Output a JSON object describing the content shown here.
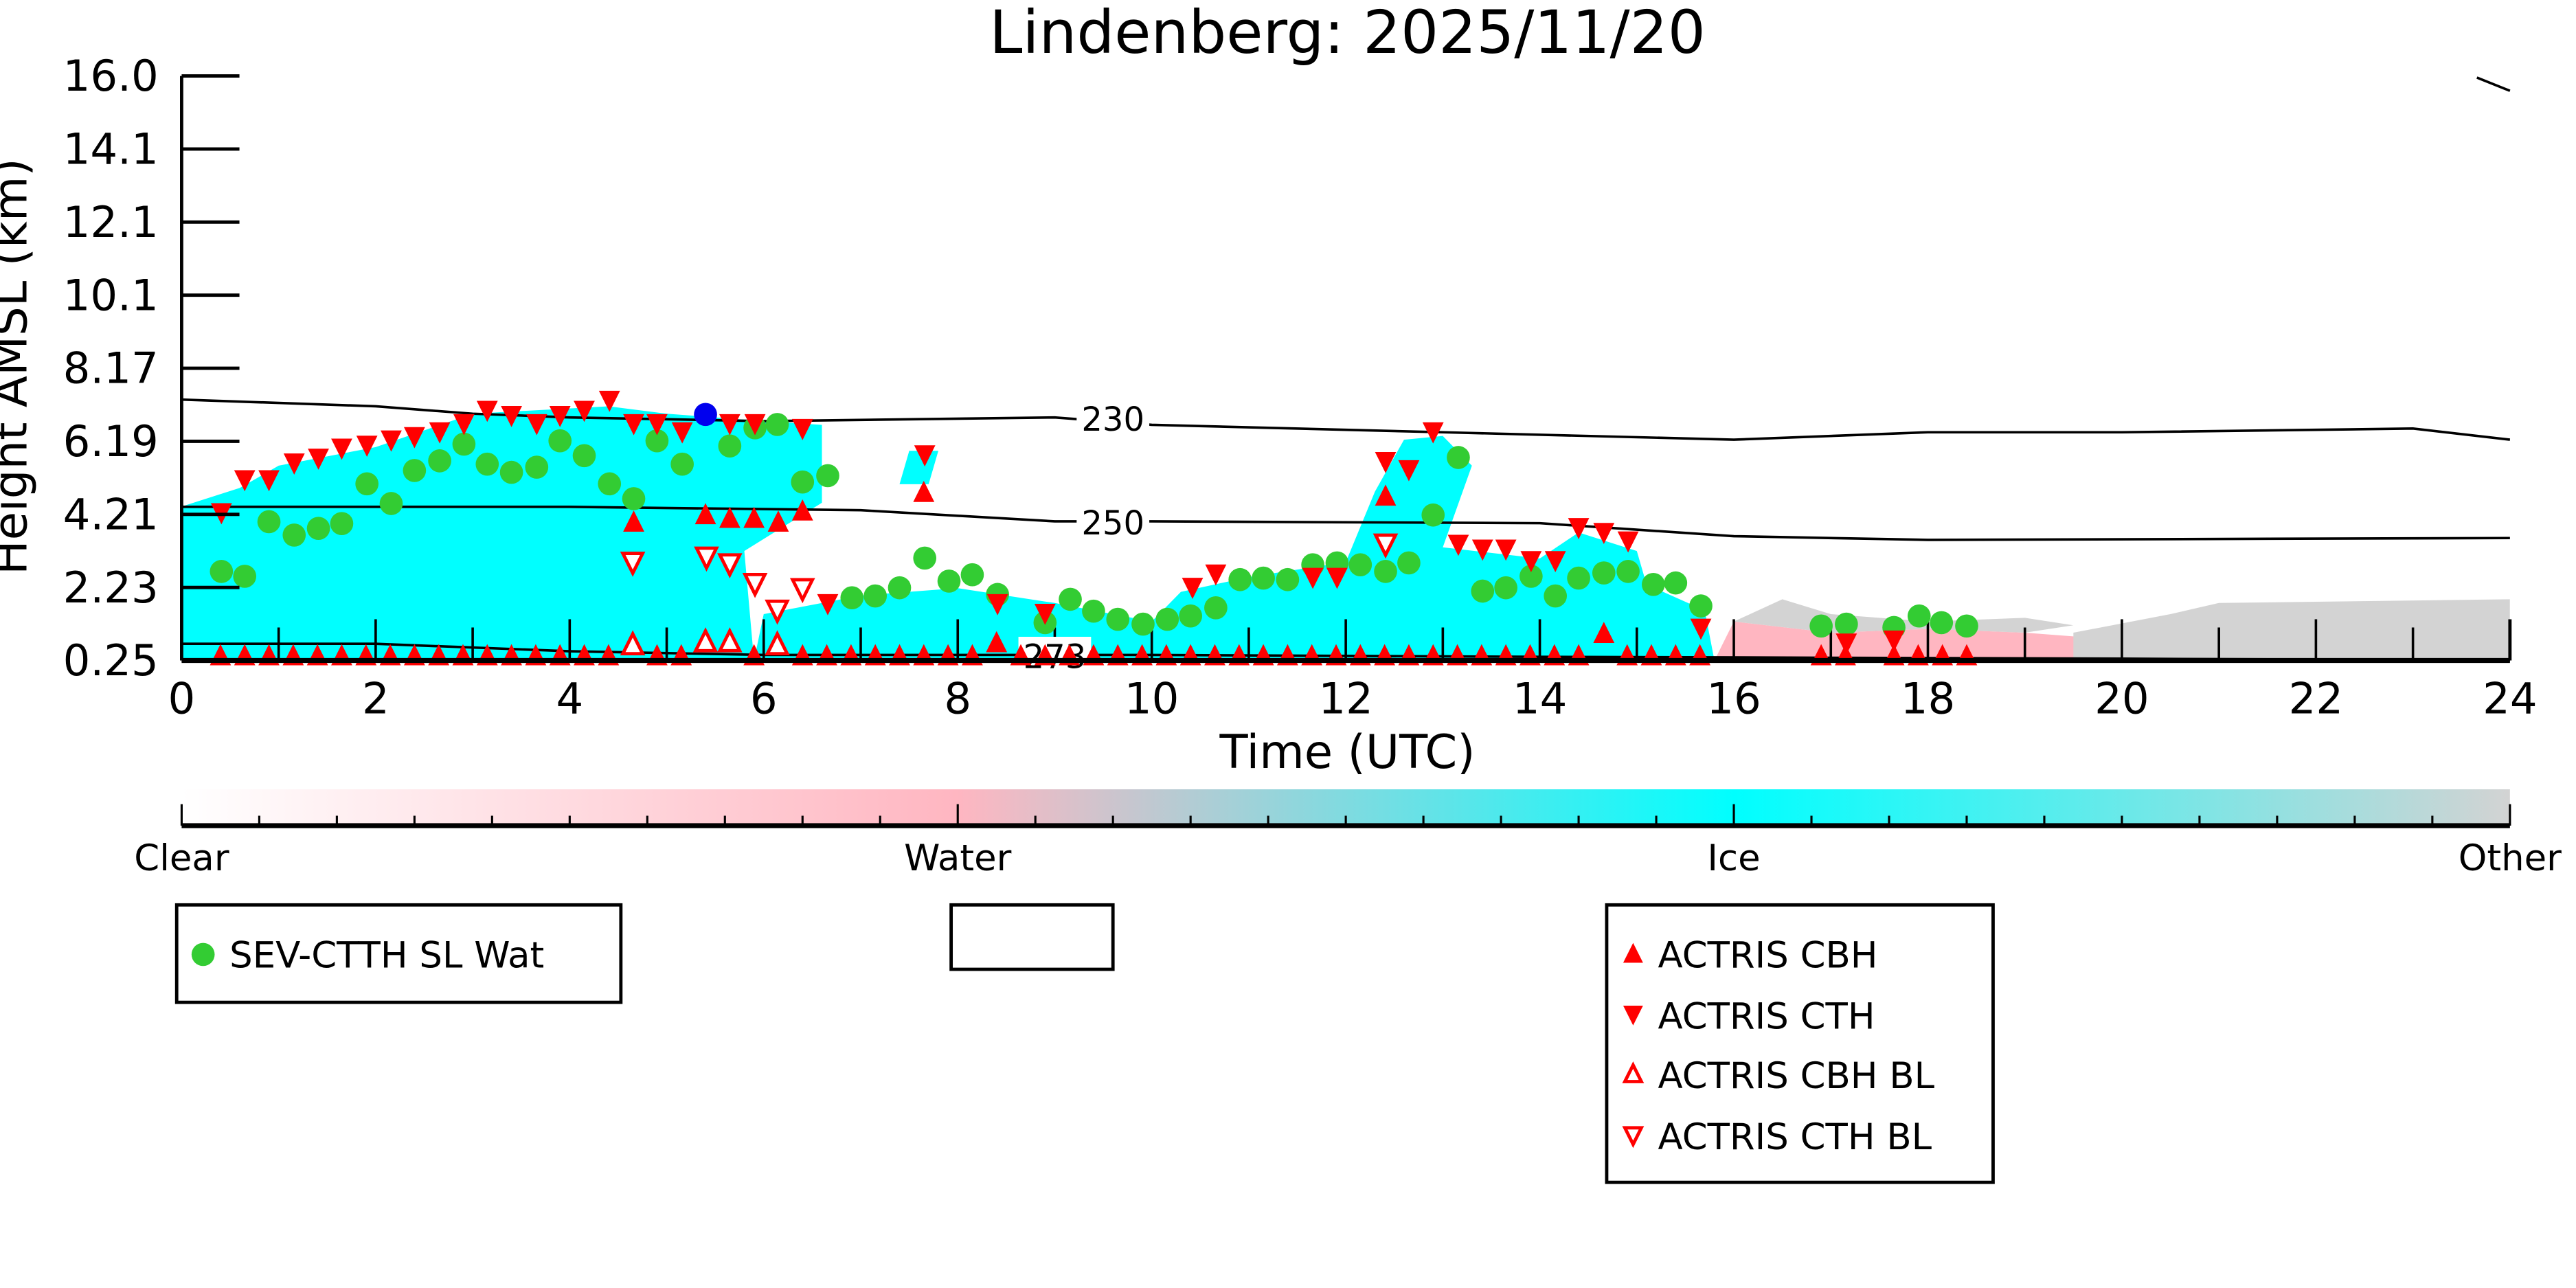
{
  "chart_data": {
    "type": "scatter",
    "title": "Lindenberg: 2025/11/20",
    "xlabel": "Time (UTC)",
    "ylabel": "Height AMSL (km)",
    "xlim": [
      0,
      24
    ],
    "ylim": [
      0.25,
      16.0
    ],
    "x_ticks": [
      "0",
      "2",
      "4",
      "6",
      "8",
      "10",
      "12",
      "14",
      "16",
      "18",
      "20",
      "22",
      "24"
    ],
    "y_ticks": [
      "16.0",
      "14.1",
      "12.1",
      "10.1",
      "8.17",
      "6.19",
      "4.21",
      "2.23",
      "0.25"
    ],
    "colorbar": {
      "labels": [
        "Clear",
        "Water",
        "Ice",
        "Other"
      ],
      "colors": [
        "#ffffff",
        "#ffb6c1",
        "#00ffff",
        "#d3d3d3"
      ]
    },
    "cloud_phase_regions": [
      {
        "phase": "Ice",
        "color": "#00ffff",
        "points": [
          [
            0,
            0.25
          ],
          [
            0,
            4.4
          ],
          [
            0.6,
            4.9
          ],
          [
            1,
            5.5
          ],
          [
            2,
            6.0
          ],
          [
            3,
            6.9
          ],
          [
            4.4,
            7.1
          ],
          [
            5,
            6.9
          ],
          [
            6,
            6.7
          ],
          [
            6.6,
            6.6
          ],
          [
            6.6,
            4.5
          ],
          [
            5.8,
            3.2
          ],
          [
            5.9,
            0.25
          ]
        ]
      },
      {
        "phase": "Ice",
        "color": "#00ffff",
        "points": [
          [
            5.9,
            0.25
          ],
          [
            6,
            1.5
          ],
          [
            7,
            2.0
          ],
          [
            8,
            2.2
          ],
          [
            9,
            1.8
          ],
          [
            10,
            1.3
          ],
          [
            10.3,
            2.1
          ],
          [
            11,
            2.5
          ],
          [
            12,
            2.9
          ],
          [
            12.3,
            4.8
          ],
          [
            12.6,
            6.2
          ],
          [
            13,
            6.3
          ],
          [
            13.3,
            5.5
          ],
          [
            13,
            3.3
          ],
          [
            14,
            3.0
          ],
          [
            14.4,
            3.7
          ],
          [
            15,
            3.2
          ],
          [
            15.1,
            2.3
          ],
          [
            15.7,
            1.6
          ],
          [
            15.8,
            0.25
          ]
        ]
      },
      {
        "phase": "Ice",
        "color": "#00ffff",
        "points": [
          [
            7.4,
            5.0
          ],
          [
            7.5,
            5.9
          ],
          [
            7.8,
            5.9
          ],
          [
            7.7,
            5.0
          ]
        ]
      },
      {
        "phase": "Water",
        "color": "#ffb6c1",
        "points": [
          [
            15.8,
            0.25
          ],
          [
            16,
            1.3
          ],
          [
            17,
            1.0
          ],
          [
            18,
            1.1
          ],
          [
            19,
            1.0
          ],
          [
            20,
            0.8
          ],
          [
            20.5,
            0.25
          ]
        ]
      },
      {
        "phase": "Other",
        "color": "#d3d3d3",
        "points": [
          [
            16,
            1.3
          ],
          [
            16.5,
            1.9
          ],
          [
            17,
            1.5
          ],
          [
            18,
            1.3
          ],
          [
            19,
            1.4
          ],
          [
            19.5,
            1.2
          ],
          [
            19,
            1.0
          ],
          [
            18,
            1.1
          ],
          [
            17,
            1.0
          ]
        ]
      },
      {
        "phase": "Other",
        "color": "#d3d3d3",
        "points": [
          [
            19.5,
            0.25
          ],
          [
            19.5,
            1.0
          ],
          [
            20.5,
            1.5
          ],
          [
            21,
            1.8
          ],
          [
            24,
            1.9
          ],
          [
            24,
            0.25
          ]
        ]
      }
    ],
    "contours": [
      {
        "label": "230",
        "label_at": 9.6,
        "points": [
          [
            0,
            7.28
          ],
          [
            2,
            7.1
          ],
          [
            3,
            6.9
          ],
          [
            4,
            6.8
          ],
          [
            6,
            6.7
          ],
          [
            9,
            6.8
          ],
          [
            10,
            6.6
          ],
          [
            13,
            6.4
          ],
          [
            16,
            6.2
          ],
          [
            18,
            6.4
          ],
          [
            20,
            6.4
          ],
          [
            23,
            6.5
          ],
          [
            24,
            6.2
          ]
        ]
      },
      {
        "label": "250",
        "label_at": 9.6,
        "points": [
          [
            0,
            4.39
          ],
          [
            4,
            4.39
          ],
          [
            7,
            4.3
          ],
          [
            9,
            4.0
          ],
          [
            10,
            4.0
          ],
          [
            14,
            3.95
          ],
          [
            16,
            3.6
          ],
          [
            18,
            3.5
          ],
          [
            24,
            3.55
          ]
        ]
      },
      {
        "label": "273",
        "label_at": 9.0,
        "points": [
          [
            0,
            0.7
          ],
          [
            2,
            0.7
          ],
          [
            4,
            0.5
          ],
          [
            6,
            0.4
          ],
          [
            9,
            0.4
          ],
          [
            10,
            0.4
          ],
          [
            14,
            0.35
          ],
          [
            20,
            0.3
          ],
          [
            24,
            0.25
          ]
        ]
      }
    ],
    "series": [
      {
        "name": "SEV-CTTH SL Wat",
        "marker": "circle",
        "color": "#33cc33",
        "points": [
          [
            0.41,
            2.65
          ],
          [
            0.65,
            2.52
          ],
          [
            0.9,
            3.99
          ],
          [
            1.16,
            3.63
          ],
          [
            1.41,
            3.81
          ],
          [
            1.65,
            3.94
          ],
          [
            1.91,
            5.01
          ],
          [
            2.16,
            4.48
          ],
          [
            2.4,
            5.37
          ],
          [
            2.66,
            5.63
          ],
          [
            2.91,
            6.08
          ],
          [
            3.15,
            5.54
          ],
          [
            3.4,
            5.32
          ],
          [
            3.66,
            5.46
          ],
          [
            3.9,
            6.17
          ],
          [
            4.15,
            5.77
          ],
          [
            4.41,
            5.01
          ],
          [
            4.66,
            4.61
          ],
          [
            4.9,
            6.17
          ],
          [
            5.16,
            5.54
          ],
          [
            5.65,
            6.03
          ],
          [
            5.91,
            6.52
          ],
          [
            6.14,
            6.61
          ],
          [
            6.4,
            5.06
          ],
          [
            6.66,
            5.23
          ],
          [
            6.91,
            1.94
          ],
          [
            7.15,
            1.99
          ],
          [
            7.4,
            2.21
          ],
          [
            7.66,
            3.01
          ],
          [
            7.91,
            2.39
          ],
          [
            8.15,
            2.56
          ],
          [
            8.41,
            2.03
          ],
          [
            8.9,
            1.27
          ],
          [
            9.16,
            1.9
          ],
          [
            9.4,
            1.58
          ],
          [
            9.65,
            1.36
          ],
          [
            9.91,
            1.23
          ],
          [
            10.16,
            1.36
          ],
          [
            10.4,
            1.45
          ],
          [
            10.66,
            1.67
          ],
          [
            10.91,
            2.43
          ],
          [
            11.15,
            2.47
          ],
          [
            11.4,
            2.43
          ],
          [
            11.66,
            2.83
          ],
          [
            11.91,
            2.88
          ],
          [
            12.15,
            2.83
          ],
          [
            12.41,
            2.65
          ],
          [
            12.65,
            2.88
          ],
          [
            12.9,
            4.17
          ],
          [
            13.16,
            5.72
          ],
          [
            13.41,
            2.12
          ],
          [
            13.65,
            2.21
          ],
          [
            13.91,
            2.52
          ],
          [
            14.16,
            1.99
          ],
          [
            14.4,
            2.47
          ],
          [
            14.66,
            2.61
          ],
          [
            14.91,
            2.65
          ],
          [
            15.17,
            2.3
          ],
          [
            15.4,
            2.34
          ],
          [
            15.66,
            1.72
          ],
          [
            16.9,
            1.18
          ],
          [
            17.16,
            1.23
          ],
          [
            17.65,
            1.14
          ],
          [
            17.91,
            1.45
          ],
          [
            18.14,
            1.27
          ],
          [
            18.4,
            1.18
          ]
        ]
      },
      {
        "name": "",
        "marker": "circle",
        "color": "#0000ee",
        "points": [
          [
            5.4,
            6.88
          ]
        ]
      },
      {
        "name": "ACTRIS CBH",
        "marker": "triangle-up",
        "color": "#ff0000",
        "points": [
          [
            4.66,
            4.0
          ],
          [
            5.4,
            4.2
          ],
          [
            5.65,
            4.1
          ],
          [
            5.9,
            4.1
          ],
          [
            6.15,
            4.0
          ],
          [
            6.4,
            4.3
          ],
          [
            7.65,
            4.8
          ],
          [
            12.41,
            4.7
          ],
          [
            14.66,
            1.0
          ],
          [
            8.4,
            0.75
          ]
        ],
        "row_height": 0.4,
        "row_times": [
          0.4,
          0.65,
          0.9,
          1.15,
          1.4,
          1.65,
          1.9,
          2.15,
          2.4,
          2.65,
          2.9,
          3.15,
          3.4,
          3.65,
          3.9,
          4.15,
          4.4,
          4.9,
          5.15,
          5.9,
          6.4,
          6.65,
          6.9,
          7.15,
          7.4,
          7.65,
          7.9,
          8.15,
          8.65,
          8.9,
          9.15,
          9.4,
          9.65,
          9.9,
          10.15,
          10.4,
          10.65,
          10.9,
          11.15,
          11.4,
          11.65,
          11.9,
          12.15,
          12.4,
          12.65,
          12.9,
          13.15,
          13.4,
          13.65,
          13.9,
          14.15,
          14.4,
          14.9,
          15.15,
          15.4,
          15.65,
          16.9,
          17.15,
          17.65,
          17.9,
          18.15,
          18.4
        ]
      },
      {
        "name": "ACTRIS CTH",
        "marker": "triangle-down",
        "color": "#ff0000",
        "points": [
          [
            0.41,
            4.21
          ],
          [
            0.65,
            5.1
          ],
          [
            0.9,
            5.1
          ],
          [
            1.16,
            5.55
          ],
          [
            1.41,
            5.68
          ],
          [
            1.65,
            5.95
          ],
          [
            1.91,
            6.03
          ],
          [
            2.16,
            6.17
          ],
          [
            2.4,
            6.26
          ],
          [
            2.66,
            6.39
          ],
          [
            2.91,
            6.61
          ],
          [
            3.15,
            6.97
          ],
          [
            3.4,
            6.83
          ],
          [
            3.66,
            6.61
          ],
          [
            3.9,
            6.83
          ],
          [
            4.15,
            6.97
          ],
          [
            4.41,
            7.24
          ],
          [
            4.66,
            6.61
          ],
          [
            4.9,
            6.61
          ],
          [
            5.16,
            6.39
          ],
          [
            5.65,
            6.61
          ],
          [
            5.91,
            6.61
          ],
          [
            6.4,
            6.48
          ],
          [
            7.66,
            5.77
          ],
          [
            12.41,
            5.59
          ],
          [
            12.65,
            5.37
          ],
          [
            12.9,
            6.39
          ],
          [
            13.16,
            3.36
          ],
          [
            13.41,
            3.23
          ],
          [
            13.65,
            3.23
          ],
          [
            13.91,
            2.92
          ],
          [
            14.16,
            2.92
          ],
          [
            14.4,
            3.81
          ],
          [
            14.66,
            3.68
          ],
          [
            14.91,
            3.45
          ],
          [
            6.66,
            1.76
          ],
          [
            8.41,
            1.76
          ],
          [
            8.9,
            1.5
          ],
          [
            10.42,
            2.2
          ],
          [
            10.66,
            2.56
          ],
          [
            11.66,
            2.47
          ],
          [
            11.91,
            2.47
          ],
          [
            15.66,
            1.1
          ],
          [
            17.16,
            0.7
          ],
          [
            17.65,
            0.78
          ]
        ]
      },
      {
        "name": "ACTRIS CBH BL",
        "marker": "triangle-up-open",
        "color": "#ff0000",
        "points": [
          [
            4.65,
            0.7
          ],
          [
            5.4,
            0.78
          ],
          [
            5.65,
            0.78
          ],
          [
            6.14,
            0.7
          ]
        ]
      },
      {
        "name": "ACTRIS CTH BL",
        "marker": "triangle-down-open",
        "color": "#ff0000",
        "points": [
          [
            4.65,
            2.87
          ],
          [
            5.41,
            3.01
          ],
          [
            5.65,
            2.83
          ],
          [
            5.91,
            2.3
          ],
          [
            6.4,
            2.16
          ],
          [
            6.14,
            1.58
          ],
          [
            12.41,
            3.36
          ]
        ]
      }
    ],
    "legends": [
      {
        "entries": [
          "SEV-CTTH SL Wat"
        ]
      },
      {
        "entries": []
      },
      {
        "entries": [
          "ACTRIS CBH",
          "ACTRIS CTH",
          "ACTRIS CBH BL",
          "ACTRIS CTH BL"
        ]
      }
    ]
  }
}
